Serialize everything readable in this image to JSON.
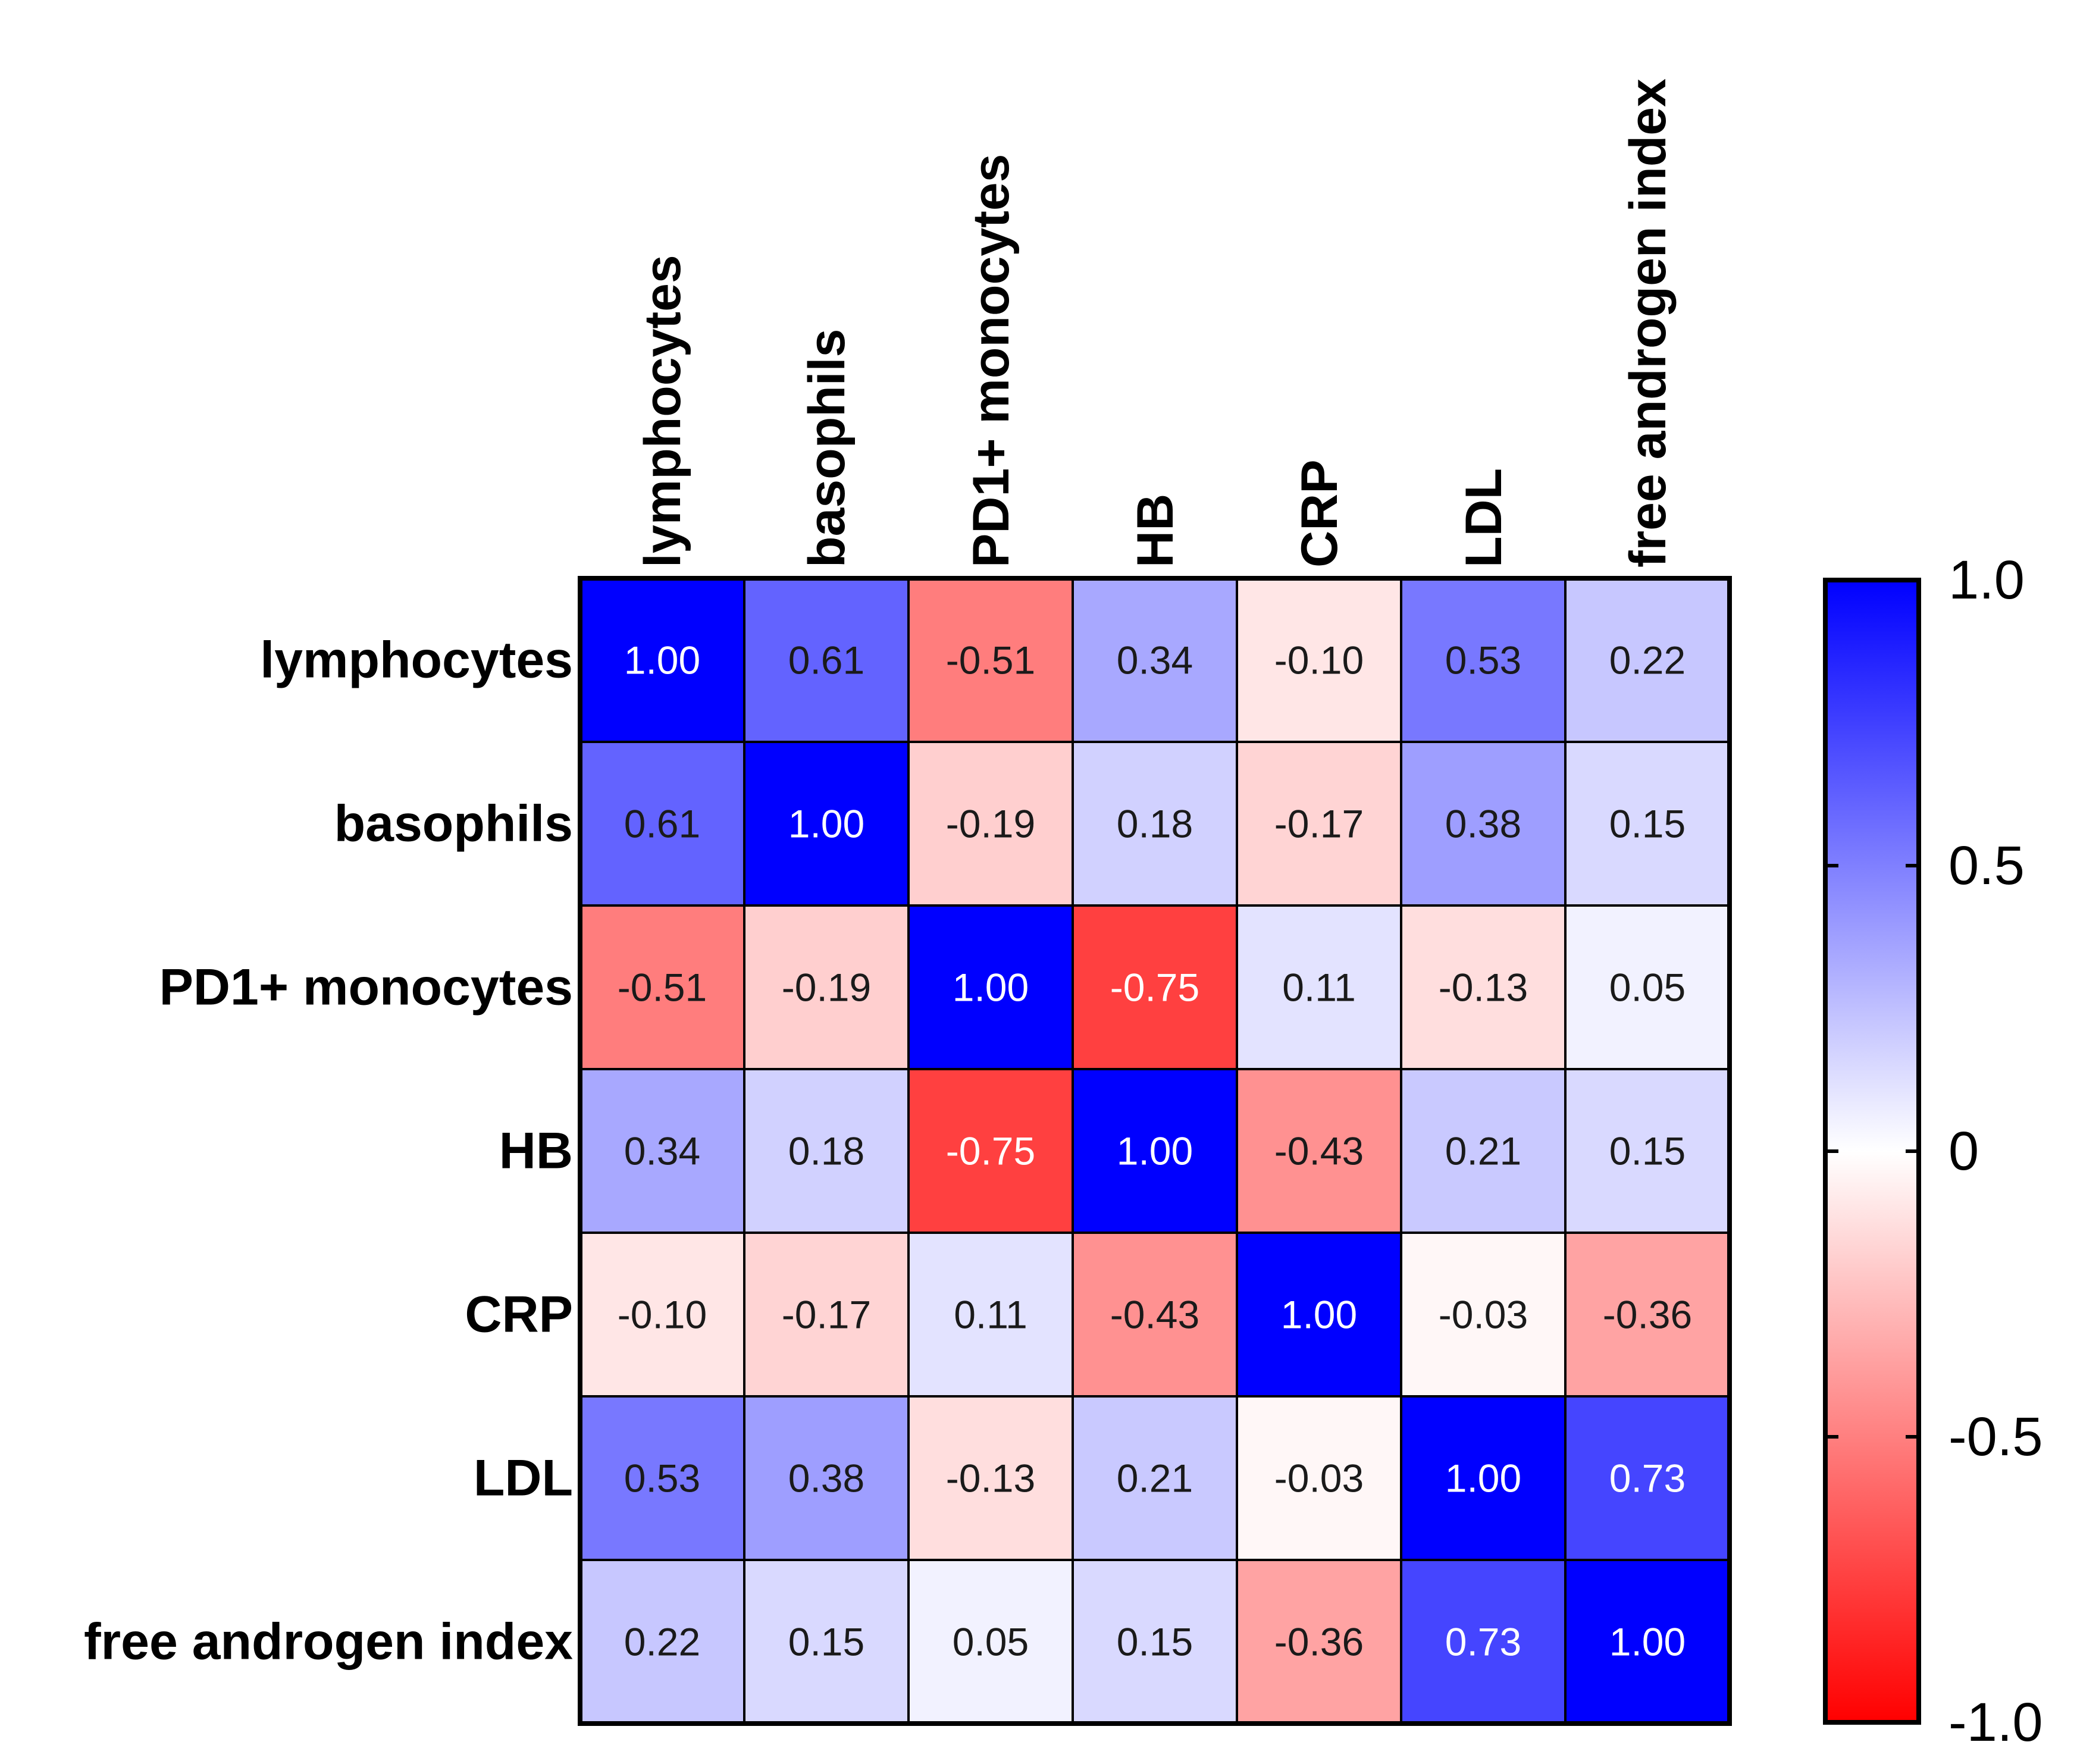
{
  "chart_data": {
    "type": "heatmap",
    "title": "",
    "rows": [
      "lymphocytes",
      "basophils",
      "PD1+ monocytes",
      "HB",
      "CRP",
      "LDL",
      "free androgen index"
    ],
    "columns": [
      "lymphocytes",
      "basophils",
      "PD1+ monocytes",
      "HB",
      "CRP",
      "LDL",
      "free androgen index"
    ],
    "values": [
      [
        1.0,
        0.61,
        -0.51,
        0.34,
        -0.1,
        0.53,
        0.22
      ],
      [
        0.61,
        1.0,
        -0.19,
        0.18,
        -0.17,
        0.38,
        0.15
      ],
      [
        -0.51,
        -0.19,
        1.0,
        -0.75,
        0.11,
        -0.13,
        0.05
      ],
      [
        0.34,
        0.18,
        -0.75,
        1.0,
        -0.43,
        0.21,
        0.15
      ],
      [
        -0.1,
        -0.17,
        0.11,
        -0.43,
        1.0,
        -0.03,
        -0.36
      ],
      [
        0.53,
        0.38,
        -0.13,
        0.21,
        -0.03,
        1.0,
        0.73
      ],
      [
        0.22,
        0.15,
        0.05,
        0.15,
        -0.36,
        0.73,
        1.0
      ]
    ],
    "value_labels": [
      [
        "1.00",
        "0.61",
        "-0.51",
        "0.34",
        "-0.10",
        "0.53",
        "0.22"
      ],
      [
        "0.61",
        "1.00",
        "-0.19",
        "0.18",
        "-0.17",
        "0.38",
        "0.15"
      ],
      [
        "-0.51",
        "-0.19",
        "1.00",
        "-0.75",
        "0.11",
        "-0.13",
        "0.05"
      ],
      [
        "0.34",
        "0.18",
        "-0.75",
        "1.00",
        "-0.43",
        "0.21",
        "0.15"
      ],
      [
        "-0.10",
        "-0.17",
        "0.11",
        "-0.43",
        "1.00",
        "-0.03",
        "-0.36"
      ],
      [
        "0.53",
        "0.38",
        "-0.13",
        "0.21",
        "-0.03",
        "1.00",
        "0.73"
      ],
      [
        "0.22",
        "0.15",
        "0.05",
        "0.15",
        "-0.36",
        "0.73",
        "1.00"
      ]
    ],
    "colorbar": {
      "range": [
        -1.0,
        1.0
      ],
      "ticks": [
        {
          "value": 1.0,
          "label": "1.0"
        },
        {
          "value": 0.5,
          "label": "0.5"
        },
        {
          "value": 0.0,
          "label": "0"
        },
        {
          "value": -0.5,
          "label": "-0.5"
        },
        {
          "value": -1.0,
          "label": "-1.0"
        }
      ],
      "positive_color": "#0000ff",
      "neutral_color": "#ffffff",
      "negative_color": "#ff0000"
    }
  }
}
